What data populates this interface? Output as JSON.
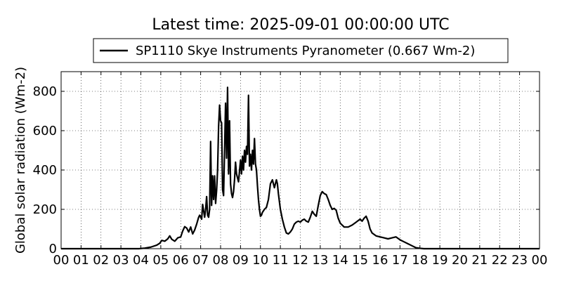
{
  "chart_data": {
    "type": "line",
    "title": "Latest time: 2025-09-01 00:00:00 UTC",
    "xlabel": "",
    "ylabel": "Global solar radiation (Wm-2)",
    "xlim": [
      0,
      24
    ],
    "ylim": [
      0,
      900
    ],
    "x_ticks": [
      0,
      1,
      2,
      3,
      4,
      5,
      6,
      7,
      8,
      9,
      10,
      11,
      12,
      13,
      14,
      15,
      16,
      17,
      18,
      19,
      20,
      21,
      22,
      23,
      24
    ],
    "x_tick_labels": [
      "00",
      "01",
      "02",
      "03",
      "04",
      "05",
      "06",
      "07",
      "08",
      "09",
      "10",
      "11",
      "12",
      "13",
      "14",
      "15",
      "16",
      "17",
      "18",
      "19",
      "20",
      "21",
      "22",
      "23",
      "00"
    ],
    "y_ticks": [
      0,
      200,
      400,
      600,
      800
    ],
    "y_tick_labels": [
      "0",
      "200",
      "400",
      "600",
      "800"
    ],
    "grid": true,
    "legend_position": "top",
    "series_color": "#000000",
    "series": [
      {
        "name": "SP1110 Skye Instruments Pyranometer (0.667 Wm-2)",
        "x": [
          0,
          3.9,
          4.2,
          4.5,
          4.8,
          4.95,
          5.05,
          5.2,
          5.35,
          5.45,
          5.55,
          5.7,
          5.85,
          6.0,
          6.1,
          6.2,
          6.3,
          6.4,
          6.5,
          6.6,
          6.7,
          6.8,
          6.9,
          6.95,
          7.05,
          7.1,
          7.2,
          7.25,
          7.3,
          7.35,
          7.4,
          7.45,
          7.5,
          7.55,
          7.6,
          7.65,
          7.7,
          7.75,
          7.8,
          7.85,
          7.9,
          7.95,
          8.0,
          8.05,
          8.1,
          8.15,
          8.2,
          8.25,
          8.3,
          8.35,
          8.4,
          8.45,
          8.5,
          8.55,
          8.6,
          8.65,
          8.7,
          8.75,
          8.8,
          8.9,
          9.0,
          9.05,
          9.1,
          9.15,
          9.2,
          9.25,
          9.3,
          9.35,
          9.4,
          9.45,
          9.5,
          9.55,
          9.6,
          9.65,
          9.7,
          9.75,
          9.8,
          9.85,
          9.9,
          9.95,
          10.0,
          10.05,
          10.1,
          10.2,
          10.3,
          10.4,
          10.5,
          10.6,
          10.7,
          10.8,
          10.85,
          10.9,
          10.95,
          11.0,
          11.1,
          11.2,
          11.3,
          11.4,
          11.5,
          11.6,
          11.7,
          11.8,
          11.9,
          12.0,
          12.1,
          12.2,
          12.3,
          12.4,
          12.5,
          12.6,
          12.7,
          12.8,
          12.9,
          13.0,
          13.1,
          13.2,
          13.3,
          13.4,
          13.5,
          13.6,
          13.7,
          13.8,
          13.9,
          14.0,
          14.2,
          14.4,
          14.6,
          14.8,
          15.0,
          15.1,
          15.2,
          15.3,
          15.4,
          15.5,
          15.6,
          15.8,
          16.0,
          16.2,
          16.4,
          16.6,
          16.8,
          17.0,
          17.2,
          17.4,
          17.6,
          17.8,
          18.0,
          18.2,
          24
        ],
        "values": [
          0,
          0,
          3,
          8,
          18,
          28,
          42,
          38,
          50,
          65,
          48,
          38,
          55,
          60,
          90,
          112,
          105,
          85,
          110,
          75,
          95,
          125,
          160,
          170,
          150,
          225,
          160,
          200,
          265,
          170,
          160,
          200,
          545,
          220,
          370,
          250,
          370,
          230,
          295,
          400,
          620,
          730,
          650,
          640,
          300,
          270,
          500,
          740,
          460,
          820,
          380,
          650,
          330,
          280,
          260,
          290,
          350,
          440,
          380,
          340,
          450,
          380,
          470,
          400,
          500,
          440,
          520,
          480,
          780,
          420,
          480,
          400,
          500,
          430,
          560,
          430,
          400,
          320,
          250,
          200,
          165,
          170,
          185,
          200,
          210,
          250,
          330,
          350,
          310,
          350,
          330,
          280,
          240,
          200,
          150,
          110,
          80,
          75,
          85,
          100,
          125,
          135,
          140,
          135,
          145,
          150,
          140,
          135,
          160,
          190,
          175,
          165,
          220,
          270,
          290,
          280,
          275,
          250,
          220,
          200,
          205,
          195,
          155,
          130,
          110,
          110,
          120,
          135,
          150,
          140,
          155,
          165,
          140,
          100,
          80,
          65,
          60,
          55,
          50,
          55,
          60,
          45,
          35,
          25,
          15,
          5,
          2,
          0,
          0
        ]
      }
    ]
  }
}
